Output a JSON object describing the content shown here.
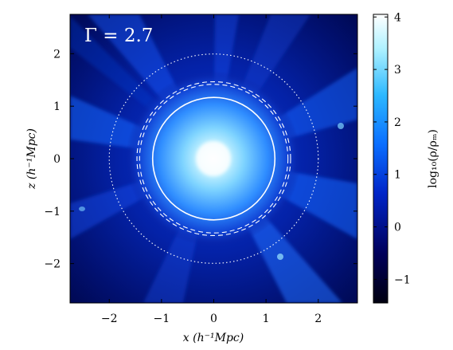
{
  "chart_data": {
    "type": "heatmap",
    "title": "Γ = 2.7",
    "xlabel": "x (h⁻¹Mpc)",
    "ylabel": "z (h⁻¹Mpc)",
    "xlim": [
      -2.75,
      2.75
    ],
    "ylim": [
      -2.75,
      2.75
    ],
    "x_ticks": [
      -2,
      -1,
      0,
      1,
      2
    ],
    "y_ticks": [
      -2,
      -1,
      0,
      1,
      2
    ],
    "colorbar": {
      "label": "log₁₀(ρ/ρₘ)",
      "range": [
        -1.45,
        4.05
      ],
      "ticks": [
        -1,
        0,
        1,
        2,
        3,
        4
      ],
      "colormap": [
        "#000010",
        "#00005a",
        "#0025c8",
        "#0a6eff",
        "#2cb8ff",
        "#aef1ff",
        "#ffffff"
      ]
    },
    "circles": [
      {
        "style": "solid",
        "radius": 1.17
      },
      {
        "style": "dashed",
        "radius": 1.42
      },
      {
        "style": "dashed",
        "radius": 1.47
      },
      {
        "style": "dotted",
        "radius": 2.0
      }
    ],
    "grid": false
  }
}
